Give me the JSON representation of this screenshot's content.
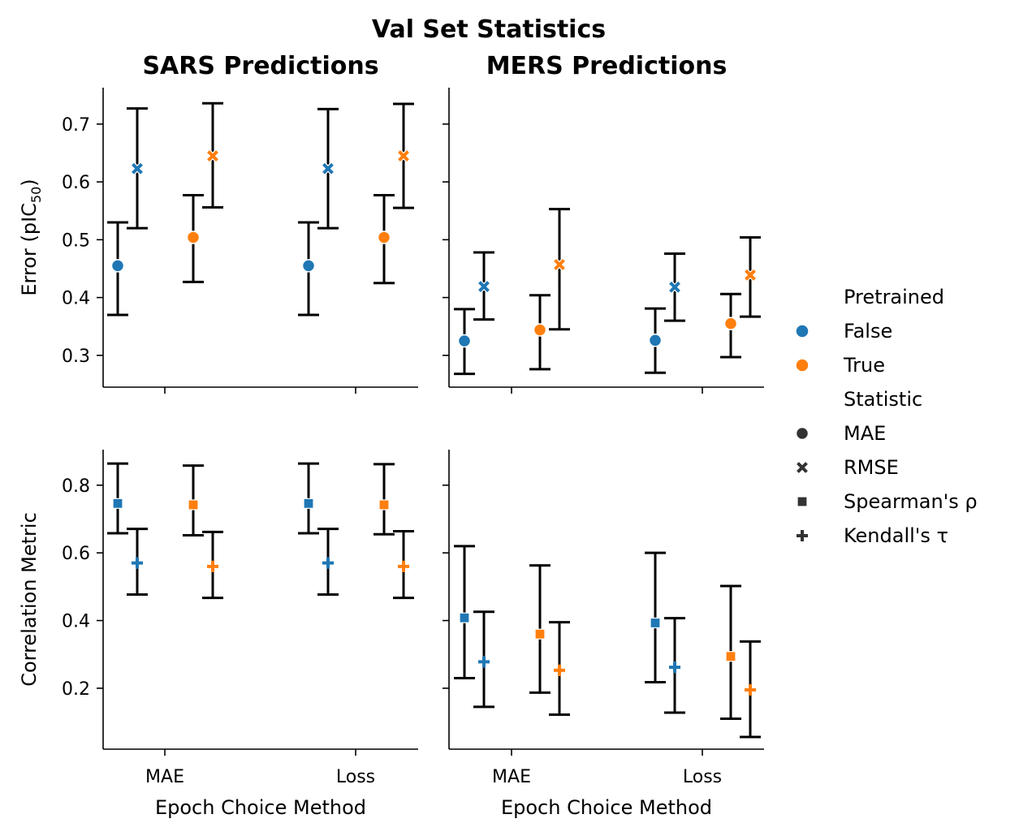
{
  "chart_data": {
    "type": "scatter",
    "title": "Val Set Statistics",
    "x_categories": [
      "MAE",
      "Loss"
    ],
    "xlabel": "Epoch Choice Method",
    "colors": {
      "False": "#1f77b4",
      "True": "#ff7f0e",
      "errbar": "#000000"
    },
    "legend": {
      "placement": "right",
      "hue_title": "Pretrained",
      "hue_entries": [
        "False",
        "True"
      ],
      "style_title": "Statistic",
      "style_entries": [
        {
          "label": "MAE",
          "marker": "circle"
        },
        {
          "label": "RMSE",
          "marker": "x"
        },
        {
          "label": "Spearman's ρ",
          "marker": "square"
        },
        {
          "label": "Kendall's τ",
          "marker": "plus"
        }
      ]
    },
    "rows": [
      {
        "ylabel": "Error (pIC50)",
        "ylabel_main": "Error (pIC",
        "ylabel_sub": "50",
        "ylabel_end": ")",
        "ylim": [
          0.245,
          0.763
        ],
        "yticks": [
          0.3,
          0.4,
          0.5,
          0.6,
          0.7
        ],
        "ytick_labels": [
          "0.3",
          "0.4",
          "0.5",
          "0.6",
          "0.7"
        ],
        "statistics": [
          "MAE",
          "RMSE"
        ]
      },
      {
        "ylabel": "Correlation Metric",
        "ylim": [
          0.02,
          0.905
        ],
        "yticks": [
          0.2,
          0.4,
          0.6,
          0.8
        ],
        "ytick_labels": [
          "0.2",
          "0.4",
          "0.6",
          "0.8"
        ],
        "statistics": [
          "Spearman's ρ",
          "Kendall's τ"
        ]
      }
    ],
    "columns": [
      "SARS Predictions",
      "MERS Predictions"
    ],
    "panels": [
      {
        "row": 0,
        "col": 0,
        "title": "SARS Predictions",
        "points": [
          {
            "x": "MAE",
            "statistic": "MAE",
            "pretrained": "False",
            "y": 0.455,
            "lo": 0.37,
            "hi": 0.53
          },
          {
            "x": "MAE",
            "statistic": "RMSE",
            "pretrained": "False",
            "y": 0.623,
            "lo": 0.52,
            "hi": 0.727
          },
          {
            "x": "MAE",
            "statistic": "MAE",
            "pretrained": "True",
            "y": 0.504,
            "lo": 0.427,
            "hi": 0.577
          },
          {
            "x": "MAE",
            "statistic": "RMSE",
            "pretrained": "True",
            "y": 0.645,
            "lo": 0.556,
            "hi": 0.736
          },
          {
            "x": "Loss",
            "statistic": "MAE",
            "pretrained": "False",
            "y": 0.455,
            "lo": 0.37,
            "hi": 0.53
          },
          {
            "x": "Loss",
            "statistic": "RMSE",
            "pretrained": "False",
            "y": 0.623,
            "lo": 0.52,
            "hi": 0.726
          },
          {
            "x": "Loss",
            "statistic": "MAE",
            "pretrained": "True",
            "y": 0.504,
            "lo": 0.425,
            "hi": 0.577
          },
          {
            "x": "Loss",
            "statistic": "RMSE",
            "pretrained": "True",
            "y": 0.645,
            "lo": 0.555,
            "hi": 0.735
          }
        ]
      },
      {
        "row": 0,
        "col": 1,
        "title": "MERS Predictions",
        "points": [
          {
            "x": "MAE",
            "statistic": "MAE",
            "pretrained": "False",
            "y": 0.325,
            "lo": 0.268,
            "hi": 0.38
          },
          {
            "x": "MAE",
            "statistic": "RMSE",
            "pretrained": "False",
            "y": 0.419,
            "lo": 0.362,
            "hi": 0.478
          },
          {
            "x": "MAE",
            "statistic": "MAE",
            "pretrained": "True",
            "y": 0.344,
            "lo": 0.276,
            "hi": 0.404
          },
          {
            "x": "MAE",
            "statistic": "RMSE",
            "pretrained": "True",
            "y": 0.457,
            "lo": 0.345,
            "hi": 0.553
          },
          {
            "x": "Loss",
            "statistic": "MAE",
            "pretrained": "False",
            "y": 0.326,
            "lo": 0.27,
            "hi": 0.381
          },
          {
            "x": "Loss",
            "statistic": "RMSE",
            "pretrained": "False",
            "y": 0.418,
            "lo": 0.36,
            "hi": 0.476
          },
          {
            "x": "Loss",
            "statistic": "MAE",
            "pretrained": "True",
            "y": 0.355,
            "lo": 0.297,
            "hi": 0.406
          },
          {
            "x": "Loss",
            "statistic": "RMSE",
            "pretrained": "True",
            "y": 0.439,
            "lo": 0.367,
            "hi": 0.504
          }
        ]
      },
      {
        "row": 1,
        "col": 0,
        "title": "",
        "points": [
          {
            "x": "MAE",
            "statistic": "Spearman's ρ",
            "pretrained": "False",
            "y": 0.746,
            "lo": 0.658,
            "hi": 0.864
          },
          {
            "x": "MAE",
            "statistic": "Kendall's τ",
            "pretrained": "False",
            "y": 0.57,
            "lo": 0.477,
            "hi": 0.671
          },
          {
            "x": "MAE",
            "statistic": "Spearman's ρ",
            "pretrained": "True",
            "y": 0.742,
            "lo": 0.652,
            "hi": 0.858
          },
          {
            "x": "MAE",
            "statistic": "Kendall's τ",
            "pretrained": "True",
            "y": 0.56,
            "lo": 0.467,
            "hi": 0.662
          },
          {
            "x": "Loss",
            "statistic": "Spearman's ρ",
            "pretrained": "False",
            "y": 0.746,
            "lo": 0.658,
            "hi": 0.864
          },
          {
            "x": "Loss",
            "statistic": "Kendall's τ",
            "pretrained": "False",
            "y": 0.57,
            "lo": 0.477,
            "hi": 0.671
          },
          {
            "x": "Loss",
            "statistic": "Spearman's ρ",
            "pretrained": "True",
            "y": 0.742,
            "lo": 0.655,
            "hi": 0.862
          },
          {
            "x": "Loss",
            "statistic": "Kendall's τ",
            "pretrained": "True",
            "y": 0.56,
            "lo": 0.467,
            "hi": 0.664
          }
        ]
      },
      {
        "row": 1,
        "col": 1,
        "title": "",
        "points": [
          {
            "x": "MAE",
            "statistic": "Spearman's ρ",
            "pretrained": "False",
            "y": 0.408,
            "lo": 0.23,
            "hi": 0.62
          },
          {
            "x": "MAE",
            "statistic": "Kendall's τ",
            "pretrained": "False",
            "y": 0.278,
            "lo": 0.145,
            "hi": 0.426
          },
          {
            "x": "MAE",
            "statistic": "Spearman's ρ",
            "pretrained": "True",
            "y": 0.36,
            "lo": 0.187,
            "hi": 0.563
          },
          {
            "x": "MAE",
            "statistic": "Kendall's τ",
            "pretrained": "True",
            "y": 0.253,
            "lo": 0.122,
            "hi": 0.395
          },
          {
            "x": "Loss",
            "statistic": "Spearman's ρ",
            "pretrained": "False",
            "y": 0.393,
            "lo": 0.218,
            "hi": 0.6
          },
          {
            "x": "Loss",
            "statistic": "Kendall's τ",
            "pretrained": "False",
            "y": 0.262,
            "lo": 0.128,
            "hi": 0.407
          },
          {
            "x": "Loss",
            "statistic": "Spearman's ρ",
            "pretrained": "True",
            "y": 0.294,
            "lo": 0.11,
            "hi": 0.502
          },
          {
            "x": "Loss",
            "statistic": "Kendall's τ",
            "pretrained": "True",
            "y": 0.195,
            "lo": 0.056,
            "hi": 0.338
          }
        ]
      }
    ]
  }
}
